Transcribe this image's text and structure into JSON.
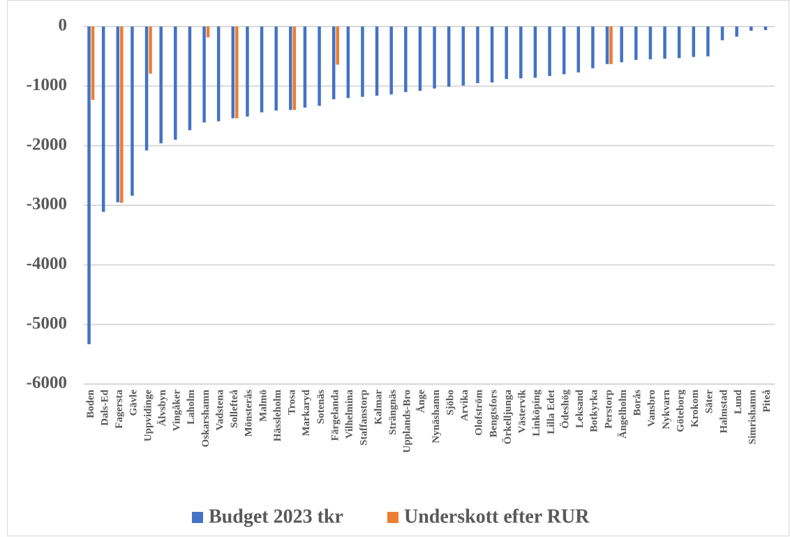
{
  "chart_data": {
    "type": "bar",
    "categories": [
      "Boden",
      "Dals-Ed",
      "Fagersta",
      "Gävle",
      "Uppvidinge",
      "Älvsbyn",
      "Vingåker",
      "Laholm",
      "Oskarshamn",
      "Vadstena",
      "Sollefteå",
      "Mönsterås",
      "Malmö",
      "Hässleholm",
      "Trosa",
      "Markaryd",
      "Sotenäs",
      "Färgelanda",
      "Vilhelmina",
      "Staffanstorp",
      "Kalmar",
      "Strängnäs",
      "Upplands-Bro",
      "Ånge",
      "Nynäshamn",
      "Sjöbo",
      "Arvika",
      "Olofström",
      "Bengtsfors",
      "Örkelljunga",
      "Västervik",
      "Linköping",
      "Lilla Edet",
      "Ödeshög",
      "Leksand",
      "Botkyrka",
      "Perstorp",
      "Ängelholm",
      "Borås",
      "Vansbro",
      "Nykvarn",
      "Göteborg",
      "Krokom",
      "Säter",
      "Halmstad",
      "Lund",
      "Simrishamn",
      "Piteå"
    ],
    "series": [
      {
        "name": "Budget 2023 tkr",
        "color": "#4472c4",
        "values": [
          -5330,
          -3110,
          -2950,
          -2840,
          -2080,
          -1960,
          -1900,
          -1740,
          -1610,
          -1590,
          -1540,
          -1510,
          -1440,
          -1410,
          -1400,
          -1360,
          -1330,
          -1220,
          -1200,
          -1180,
          -1160,
          -1140,
          -1100,
          -1080,
          -1040,
          -1010,
          -990,
          -950,
          -940,
          -880,
          -870,
          -860,
          -830,
          -800,
          -770,
          -700,
          -630,
          -600,
          -560,
          -550,
          -540,
          -530,
          -510,
          -500,
          -230,
          -170,
          -70,
          -60
        ]
      },
      {
        "name": "Underskott efter RUR",
        "color": "#ed7d31",
        "values": [
          -1230,
          null,
          -2960,
          null,
          -790,
          null,
          null,
          null,
          -180,
          null,
          -1540,
          null,
          null,
          null,
          -1400,
          null,
          null,
          -640,
          null,
          null,
          null,
          null,
          null,
          null,
          null,
          null,
          null,
          null,
          null,
          null,
          null,
          null,
          null,
          null,
          null,
          null,
          -630,
          null,
          null,
          null,
          null,
          null,
          null,
          null,
          null,
          null,
          null,
          null
        ]
      }
    ],
    "ylim": [
      -6000,
      0
    ],
    "yticks": [
      0,
      -1000,
      -2000,
      -3000,
      -4000,
      -5000,
      -6000
    ],
    "grid": true,
    "legend": "bottom"
  }
}
